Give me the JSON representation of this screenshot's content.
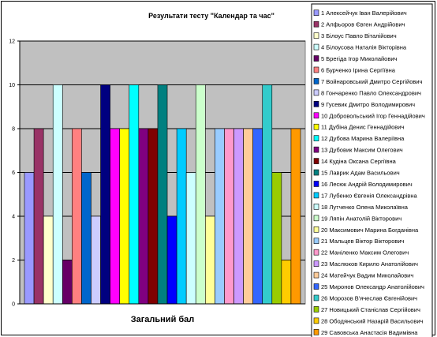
{
  "chart_data": {
    "type": "bar",
    "title": "Результати тесту \"Календар та час\"",
    "xlabel": "Загальний бал",
    "ylabel": "",
    "ylim": [
      0,
      12
    ],
    "yticks": [
      0,
      2,
      4,
      6,
      8,
      10,
      12
    ],
    "grid": true,
    "legend_position": "right",
    "plot_background": "#c0c0c0",
    "series": [
      {
        "name": "1 Алексейчук Іван Валерійович",
        "value": 6,
        "color": "#9999ff"
      },
      {
        "name": "2 Алфьоров Євген Андрійович",
        "value": 8,
        "color": "#993366"
      },
      {
        "name": "3 Білоус Павло Віталійович",
        "value": 4,
        "color": "#ffffcc"
      },
      {
        "name": "4 Білоусова Наталія Вікторівна",
        "value": 10,
        "color": "#ccffff"
      },
      {
        "name": "5 Брегіда Ігор Миколайович",
        "value": 2,
        "color": "#660066"
      },
      {
        "name": "6 Бурченко Ірина Сергіївна",
        "value": 8,
        "color": "#ff8080"
      },
      {
        "name": "7 Войнаровський Дмитро Сергійович",
        "value": 6,
        "color": "#0066cc"
      },
      {
        "name": "8 Гончаренко Павло Олександрович",
        "value": 4,
        "color": "#ccccff"
      },
      {
        "name": "9 Гусевик Дмитро Володимирович",
        "value": 10,
        "color": "#000080"
      },
      {
        "name": "10 Добровольський Ігор Геннадійович",
        "value": 8,
        "color": "#ff00ff"
      },
      {
        "name": "11 Дубіна Денис Геннадійович",
        "value": 8,
        "color": "#ffff00"
      },
      {
        "name": "12 Дубова Марина Валеріївна",
        "value": 10,
        "color": "#00ffff"
      },
      {
        "name": "13 Дубовик Максим Олегович",
        "value": 8,
        "color": "#800080"
      },
      {
        "name": "14 Кудіна Оксана Сергіївна",
        "value": 8,
        "color": "#800000"
      },
      {
        "name": "15 Лаврик Адам Васильович",
        "value": 10,
        "color": "#008080"
      },
      {
        "name": "16 Лесюк Андрій Володимирович",
        "value": 4,
        "color": "#0000ff"
      },
      {
        "name": "17 Лубенко Євгенія Олександрівна",
        "value": 8,
        "color": "#00ccff"
      },
      {
        "name": "18 Лутченко Олена Миколаївна",
        "value": 6,
        "color": "#ccffff"
      },
      {
        "name": "19 Ляпін Анатолій Вікторович",
        "value": 10,
        "color": "#ccffcc"
      },
      {
        "name": "20 Максимович Марина Богданівна",
        "value": 4,
        "color": "#ffff99"
      },
      {
        "name": "21 Мальцев Віктор Вікторович",
        "value": 8,
        "color": "#99ccff"
      },
      {
        "name": "22 Маніленко Максим Олегович",
        "value": 8,
        "color": "#ff99cc"
      },
      {
        "name": "23 Маслюков Кирило Анатолійович",
        "value": 8,
        "color": "#cc99ff"
      },
      {
        "name": "24 Матейчук Вадим Миколайович",
        "value": 8,
        "color": "#ffcc99"
      },
      {
        "name": "25 Миронов Олександр Анатолійович",
        "value": 8,
        "color": "#3366ff"
      },
      {
        "name": "26 Морозов В'ячеслав Євгенійович",
        "value": 10,
        "color": "#33cccc"
      },
      {
        "name": "27 Новицький Станіслав Сергійович",
        "value": 6,
        "color": "#99cc00"
      },
      {
        "name": "28 Ободянський Назарій Васильович",
        "value": 2,
        "color": "#ffcc00"
      },
      {
        "name": "29 Савовська Анастасія Вадимівна",
        "value": 8,
        "color": "#ff9900"
      }
    ]
  }
}
